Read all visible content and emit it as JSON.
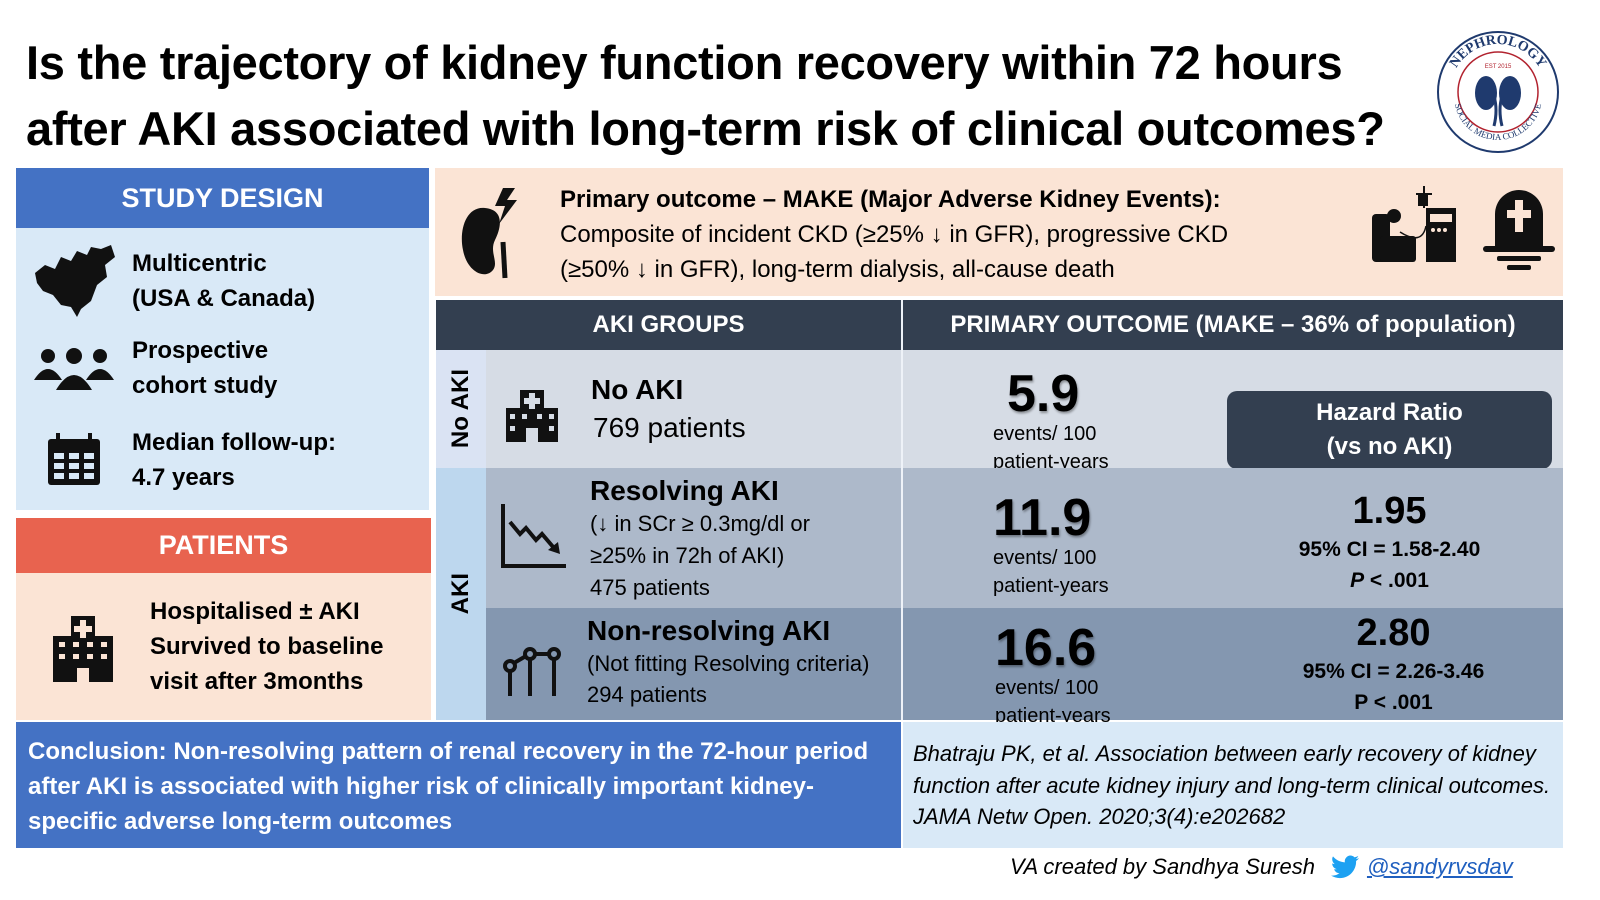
{
  "title": "Is the trajectory of kidney function recovery within 72 hours after AKI associated with long-term risk of clinical outcomes?",
  "logo": {
    "text": "NEPHROLOGY SOCIAL MEDIA COLLECTIVE",
    "est": "EST 2015"
  },
  "study_design": {
    "header": "STUDY DESIGN",
    "items": [
      {
        "icon": "north-america-map-icon",
        "line1": "Multicentric",
        "line2": "(USA & Canada)"
      },
      {
        "icon": "people-group-icon",
        "line1": "Prospective",
        "line2": "cohort study"
      },
      {
        "icon": "calendar-icon",
        "line1": "Median follow-up:",
        "line2": "4.7 years"
      }
    ]
  },
  "patients": {
    "header": "PATIENTS",
    "line1": "Hospitalised ± AKI",
    "line2": "Survived to baseline",
    "line3": "visit after 3months"
  },
  "primary_outcome": {
    "title": "Primary outcome – MAKE (Major Adverse Kidney Events):",
    "line1": "Composite of incident CKD (≥25% ↓ in GFR), progressive CKD",
    "line2": "(≥50% ↓ in GFR), long-term dialysis, all-cause death"
  },
  "table": {
    "col1": "AKI GROUPS",
    "col2": "PRIMARY OUTCOME (MAKE – 36% of population)",
    "side_labels": {
      "no_aki": "No AKI",
      "aki": "AKI"
    },
    "hr_header": {
      "line1": "Hazard Ratio",
      "line2": "(vs no AKI)"
    },
    "events_unit1": "events/ 100",
    "events_unit2": "patient-years",
    "rows": [
      {
        "name": "No AKI",
        "desc1": "769 patients",
        "rate": "5.9"
      },
      {
        "name": "Resolving AKI",
        "desc1": "(↓ in SCr ≥ 0.3mg/dl or",
        "desc2": "≥25% in 72h of AKI)",
        "desc3": "475 patients",
        "rate": "11.9",
        "hr": "1.95",
        "ci": "95% CI = 1.58-2.40",
        "p_label": "P",
        "p": " < .001"
      },
      {
        "name": "Non-resolving AKI",
        "desc1": "(Not fitting Resolving criteria)",
        "desc3": "294 patients",
        "rate": "16.6",
        "hr": "2.80",
        "ci": "95% CI = 2.26-3.46",
        "p_label": "P",
        "p": " < .001"
      }
    ]
  },
  "conclusion": "Conclusion: Non-resolving pattern of renal recovery in the 72-hour period after AKI is associated with higher risk of clinically important kidney-specific adverse long-term outcomes",
  "citation": "Bhatraju PK, et al. Association between early recovery of kidney function after acute kidney injury and long-term clinical outcomes. JAMA Netw Open. 2020;3(4):e202682",
  "credit": {
    "text": "VA created by Sandhya Suresh",
    "handle": "@sandyrvsdav"
  },
  "colors": {
    "blue": "#4472c4",
    "light_blue": "#d9e9f7",
    "red": "#e8634f",
    "peach": "#fbe4d5",
    "navy": "#333f50",
    "row1": "#d6dce5",
    "row2": "#adb9ca",
    "row3": "#8497b0"
  }
}
